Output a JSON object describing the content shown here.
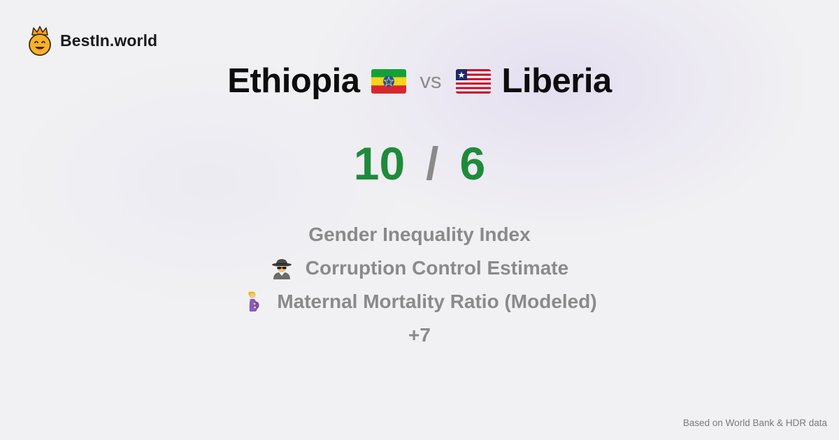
{
  "brand": {
    "name": "BestIn.world",
    "logo_icon": "crown-smiley-icon"
  },
  "comparison": {
    "left_country": "Ethiopia",
    "left_flag_icon": "ethiopia-flag-icon",
    "separator": "vs",
    "right_country": "Liberia",
    "right_flag_icon": "liberia-flag-icon"
  },
  "score": {
    "left": "10",
    "separator": "/",
    "right": "6",
    "color": "#1e8b3a"
  },
  "metrics": [
    {
      "label": "Gender Inequality Index",
      "icon": ""
    },
    {
      "label": "Corruption Control Estimate",
      "icon": "spy-detective-icon"
    },
    {
      "label": "Maternal Mortality Ratio (Modeled)",
      "icon": "pregnant-woman-icon"
    }
  ],
  "more_count": "+7",
  "footer": {
    "source": "Based on World Bank & HDR data"
  }
}
